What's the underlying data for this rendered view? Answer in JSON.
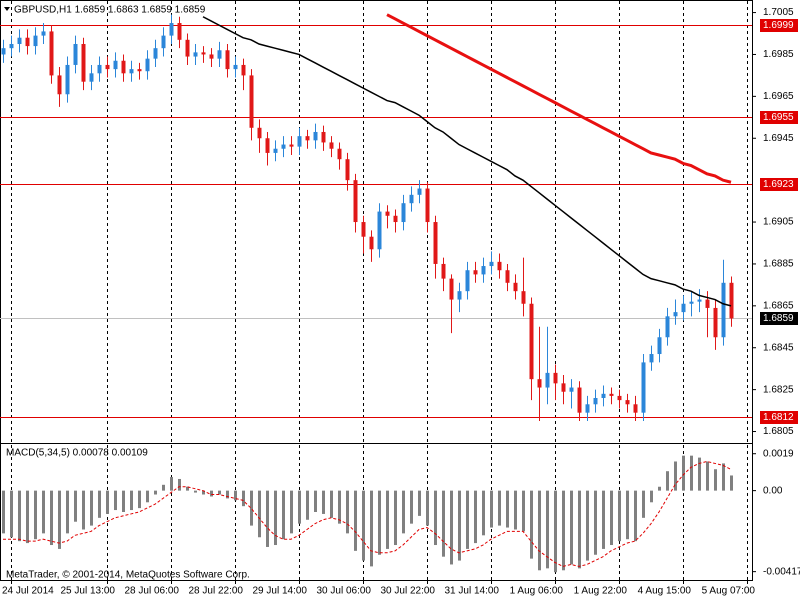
{
  "chart_data": [
    {
      "type": "candlestick",
      "title": "GBPUSD,H1  1.6859 1.6863 1.6859 1.6859",
      "categories": [
        null,
        "24 Jul 2014",
        null,
        null,
        null,
        null,
        null,
        null,
        null,
        null,
        null,
        null,
        null,
        "25 Jul 13:00",
        null,
        null,
        null,
        null,
        null,
        null,
        null,
        "28 Jul 06:00",
        null,
        null,
        null,
        null,
        null,
        null,
        null,
        "28 Jul 22:00",
        null,
        null,
        null,
        null,
        null,
        null,
        null,
        "29 Jul 14:00",
        null,
        null,
        null,
        null,
        null,
        null,
        null,
        "30 Jul 06:00",
        null,
        null,
        null,
        null,
        null,
        null,
        null,
        "30 Jul 22:00",
        null,
        null,
        null,
        null,
        null,
        null,
        null,
        "31 Jul 14:00",
        null,
        null,
        null,
        null,
        null,
        null,
        null,
        "1 Aug 06:00",
        null,
        null,
        null,
        null,
        null,
        null,
        null,
        "1 Aug 22:00",
        null,
        null,
        null,
        null,
        null,
        null,
        null,
        "4 Aug 15:00",
        null,
        null,
        null,
        null,
        null,
        null,
        null,
        "5 Aug 07:00"
      ],
      "open": [
        1.6985,
        1.6988,
        1.699,
        1.6993,
        1.6989,
        1.6994,
        1.6996,
        1.6975,
        1.6966,
        1.698,
        1.699,
        1.6972,
        1.6976,
        1.698,
        1.6978,
        1.6982,
        1.6976,
        1.6978,
        1.6977,
        1.6983,
        1.6988,
        1.6994,
        1.7,
        1.6992,
        1.6984,
        1.6986,
        1.6985,
        1.6983,
        1.6987,
        1.6978,
        1.698,
        1.6975,
        1.695,
        1.6945,
        1.6938,
        1.694,
        1.6942,
        1.6941,
        1.6946,
        1.6944,
        1.6948,
        1.6943,
        1.694,
        1.6935,
        1.6925,
        1.6905,
        1.6898,
        1.6892,
        1.691,
        1.6908,
        1.6905,
        1.6914,
        1.6918,
        1.6921,
        1.6905,
        1.6885,
        1.6878,
        1.6868,
        1.6872,
        1.6882,
        1.688,
        1.6884,
        1.6886,
        1.6882,
        1.6876,
        1.6872,
        1.6866,
        1.683,
        1.6826,
        1.6833,
        1.6828,
        1.6824,
        1.6826,
        1.6814,
        1.6818,
        1.6821,
        1.6823,
        1.6822,
        1.682,
        1.6818,
        1.6814,
        1.6838,
        1.6842,
        1.685,
        1.686,
        1.6862,
        1.6866,
        1.6867,
        1.6868,
        1.6864,
        1.685,
        1.6876,
        null,
        null
      ],
      "high": [
        1.6992,
        1.6994,
        1.6997,
        1.6997,
        1.6998,
        1.7,
        1.6999,
        1.6979,
        1.6984,
        1.6994,
        1.6993,
        1.698,
        1.6984,
        1.6984,
        1.6986,
        1.6985,
        1.6982,
        1.6981,
        1.6987,
        1.6992,
        1.6998,
        1.7004,
        1.7003,
        1.6995,
        1.699,
        1.6989,
        1.6988,
        1.6991,
        1.699,
        1.6984,
        1.6983,
        1.6978,
        1.6954,
        1.6948,
        1.6944,
        1.6946,
        1.6946,
        1.695,
        1.6949,
        1.6952,
        1.6951,
        1.6946,
        1.6943,
        1.6938,
        1.6928,
        1.6908,
        1.6901,
        1.6914,
        1.6913,
        1.6911,
        1.6918,
        1.6922,
        1.6925,
        1.6924,
        1.6908,
        1.6888,
        1.688,
        1.6876,
        1.6886,
        1.6886,
        1.6888,
        1.6891,
        1.689,
        1.6885,
        1.688,
        1.6888,
        1.6869,
        1.6855,
        1.6855,
        1.6837,
        1.6832,
        1.683,
        1.6829,
        1.6822,
        1.6825,
        1.6827,
        1.6826,
        1.6825,
        1.6823,
        1.6822,
        1.6842,
        1.6846,
        1.6854,
        1.6864,
        1.6868,
        1.687,
        1.6872,
        1.6873,
        1.6872,
        1.6868,
        1.6887,
        1.6879,
        null,
        null
      ],
      "low": [
        1.6981,
        1.6984,
        1.6986,
        1.6985,
        1.6985,
        1.699,
        1.6971,
        1.696,
        1.6962,
        1.6976,
        1.6968,
        1.6968,
        1.6972,
        1.6974,
        1.6974,
        1.6972,
        1.6972,
        1.6973,
        1.6973,
        1.6979,
        1.6984,
        1.699,
        1.6988,
        1.698,
        1.698,
        1.6981,
        1.6979,
        1.6979,
        1.6974,
        1.6974,
        1.6968,
        1.6944,
        1.6938,
        1.6932,
        1.6934,
        1.6936,
        1.6937,
        1.6937,
        1.694,
        1.694,
        1.6939,
        1.6936,
        1.693,
        1.692,
        1.69,
        1.689,
        1.6886,
        1.6888,
        1.6902,
        1.69,
        1.6901,
        1.691,
        1.6914,
        1.69,
        1.6878,
        1.6872,
        1.6852,
        1.6862,
        1.6868,
        1.6876,
        1.6876,
        1.688,
        1.6878,
        1.6872,
        1.6868,
        1.686,
        1.682,
        1.681,
        1.6818,
        1.682,
        1.6818,
        1.6816,
        1.681,
        1.681,
        1.6814,
        1.6817,
        1.6818,
        1.6816,
        1.6814,
        1.681,
        1.681,
        1.6834,
        1.6838,
        1.6846,
        1.6856,
        1.6858,
        1.686,
        1.6862,
        1.685,
        1.6844,
        1.6846,
        1.6855,
        null,
        null
      ],
      "close": [
        1.6988,
        1.699,
        1.6993,
        1.6989,
        1.6994,
        1.6996,
        1.6975,
        1.6966,
        1.698,
        1.699,
        1.6972,
        1.6976,
        1.698,
        1.6978,
        1.6982,
        1.6976,
        1.6978,
        1.6977,
        1.6983,
        1.6988,
        1.6994,
        1.7,
        1.6992,
        1.6984,
        1.6986,
        1.6985,
        1.6983,
        1.6987,
        1.6978,
        1.698,
        1.6975,
        1.695,
        1.6945,
        1.6938,
        1.694,
        1.6942,
        1.6941,
        1.6946,
        1.6944,
        1.6948,
        1.6943,
        1.694,
        1.6935,
        1.6925,
        1.6905,
        1.6898,
        1.6892,
        1.691,
        1.6908,
        1.6905,
        1.6914,
        1.6918,
        1.6921,
        1.6905,
        1.6885,
        1.6878,
        1.6868,
        1.6872,
        1.6882,
        1.688,
        1.6884,
        1.6886,
        1.6882,
        1.6876,
        1.6872,
        1.6866,
        1.683,
        1.6826,
        1.6833,
        1.6828,
        1.6824,
        1.6826,
        1.6814,
        1.6818,
        1.6821,
        1.6823,
        1.6822,
        1.682,
        1.6818,
        1.6814,
        1.6838,
        1.6842,
        1.685,
        1.686,
        1.6862,
        1.6866,
        1.6867,
        1.6868,
        1.6864,
        1.685,
        1.6876,
        1.6859,
        null,
        null
      ],
      "up_color": "#2b86d9",
      "down_color": "#e01818",
      "lines": [
        {
          "color": "#000000",
          "values": [
            null,
            null,
            null,
            null,
            null,
            null,
            null,
            null,
            null,
            null,
            null,
            null,
            null,
            null,
            null,
            null,
            null,
            null,
            null,
            null,
            null,
            null,
            null,
            null,
            null,
            1.7003,
            1.7001,
            1.6999,
            1.6997,
            1.6995,
            1.6993,
            1.6992,
            1.699,
            1.6989,
            1.6988,
            1.6987,
            1.6986,
            1.6985,
            1.6983,
            1.6981,
            1.6979,
            1.6977,
            1.6975,
            1.6973,
            1.6971,
            1.6969,
            1.6967,
            1.6965,
            1.6963,
            1.6962,
            1.696,
            1.6958,
            1.6956,
            1.6953,
            1.695,
            1.6948,
            1.6945,
            1.6942,
            1.694,
            1.6938,
            1.6936,
            1.6934,
            1.6932,
            1.693,
            1.6927,
            1.6925,
            1.6922,
            1.6919,
            1.6916,
            1.6913,
            1.691,
            1.6907,
            1.6904,
            1.6901,
            1.6898,
            1.6895,
            1.6892,
            1.6889,
            1.6886,
            1.6883,
            1.688,
            1.6878,
            1.6877,
            1.6876,
            1.6875,
            1.6873,
            1.6872,
            1.687,
            1.6869,
            1.6868,
            1.6866,
            1.6865,
            null,
            null
          ]
        },
        {
          "color": "#e81010",
          "values": [
            null,
            null,
            null,
            null,
            null,
            null,
            null,
            null,
            null,
            null,
            null,
            null,
            null,
            null,
            null,
            null,
            null,
            null,
            null,
            null,
            null,
            null,
            null,
            null,
            null,
            null,
            null,
            null,
            null,
            null,
            null,
            null,
            null,
            null,
            null,
            null,
            null,
            null,
            null,
            null,
            null,
            null,
            null,
            null,
            null,
            null,
            null,
            null,
            1.7004,
            1.7002,
            1.7,
            1.6998,
            1.6996,
            1.6994,
            1.6992,
            1.699,
            1.6988,
            1.6986,
            1.6984,
            1.6982,
            1.698,
            1.6978,
            1.6976,
            1.6974,
            1.6972,
            1.697,
            1.6968,
            1.6966,
            1.6964,
            1.6962,
            1.696,
            1.6958,
            1.6956,
            1.6954,
            1.6952,
            1.695,
            1.6948,
            1.6946,
            1.6944,
            1.6942,
            1.694,
            1.6938,
            1.6937,
            1.6936,
            1.6935,
            1.6933,
            1.6932,
            1.693,
            1.6928,
            1.6927,
            1.6925,
            1.6924,
            null,
            null
          ]
        }
      ],
      "levels": [
        1.6999,
        1.6955,
        1.6923,
        1.6812
      ],
      "level_color": "#e00000",
      "last_price": 1.6859,
      "ylim": [
        1.68,
        1.7011
      ],
      "yticks": [
        1.7005,
        1.6985,
        1.6965,
        1.6945,
        1.6905,
        1.6885,
        1.6865,
        1.6845,
        1.6825,
        1.6805
      ],
      "grid": true
    },
    {
      "type": "macd",
      "title": "MACD(5,34,5) 0.00078 0.00109",
      "footer": "MetaTrader, © 2001-2014, MetaQuotes Software Corp.",
      "histogram": {
        "color": "#808080",
        "values": [
          -0.0022,
          -0.0024,
          -0.0026,
          -0.0027,
          -0.0025,
          -0.0022,
          -0.0028,
          -0.003,
          -0.0022,
          -0.0016,
          -0.002,
          -0.0018,
          -0.0014,
          -0.0012,
          -0.001,
          -0.0011,
          -0.001,
          -0.0009,
          -0.0006,
          -0.0002,
          0.0003,
          0.0007,
          0.0006,
          0.0002,
          -0.0001,
          -0.0002,
          -0.0003,
          -0.0002,
          -0.0004,
          -0.0005,
          -0.0008,
          -0.0018,
          -0.0024,
          -0.0029,
          -0.0028,
          -0.0025,
          -0.0022,
          -0.0017,
          -0.0015,
          -0.0011,
          -0.0012,
          -0.0014,
          -0.0017,
          -0.0022,
          -0.0031,
          -0.0036,
          -0.0039,
          -0.0033,
          -0.003,
          -0.0028,
          -0.0022,
          -0.0017,
          -0.0013,
          -0.0018,
          -0.0028,
          -0.0034,
          -0.0038,
          -0.0036,
          -0.003,
          -0.0027,
          -0.0023,
          -0.0019,
          -0.0018,
          -0.0019,
          -0.002,
          -0.0021,
          -0.0035,
          -0.0041,
          -0.004,
          -0.0042,
          -0.0041,
          -0.0038,
          -0.004,
          -0.0036,
          -0.0033,
          -0.003,
          -0.0028,
          -0.0026,
          -0.0025,
          -0.0026,
          -0.0014,
          -0.0006,
          0.0002,
          0.001,
          0.0015,
          0.0018,
          0.0018,
          0.0017,
          0.0015,
          0.0011,
          0.0014,
          0.00078,
          null,
          null
        ]
      },
      "signal": {
        "color": "#e00000",
        "values": [
          -0.0025,
          -0.0025,
          -0.0025,
          -0.0026,
          -0.0026,
          -0.0025,
          -0.0026,
          -0.0027,
          -0.0026,
          -0.0023,
          -0.0022,
          -0.0021,
          -0.0018,
          -0.0016,
          -0.0014,
          -0.0013,
          -0.0012,
          -0.0011,
          -0.0009,
          -0.0007,
          -0.0004,
          -0.0001,
          0.0002,
          0.0002,
          0.0001,
          0,
          -0.0002,
          -0.0002,
          -0.0003,
          -0.0004,
          -0.0005,
          -0.0009,
          -0.0014,
          -0.0019,
          -0.0023,
          -0.0025,
          -0.0025,
          -0.0023,
          -0.002,
          -0.0017,
          -0.0015,
          -0.0014,
          -0.0015,
          -0.0017,
          -0.0021,
          -0.0026,
          -0.0031,
          -0.0032,
          -0.0032,
          -0.0031,
          -0.0028,
          -0.0024,
          -0.002,
          -0.0019,
          -0.0022,
          -0.0026,
          -0.003,
          -0.0032,
          -0.0031,
          -0.003,
          -0.0028,
          -0.0025,
          -0.0023,
          -0.0021,
          -0.0021,
          -0.0021,
          -0.0026,
          -0.0031,
          -0.0034,
          -0.0037,
          -0.0039,
          -0.0038,
          -0.0039,
          -0.0038,
          -0.0036,
          -0.0034,
          -0.0031,
          -0.0029,
          -0.0027,
          -0.0026,
          -0.0022,
          -0.0017,
          -0.0011,
          -0.0004,
          0.0003,
          0.0008,
          0.0012,
          0.0014,
          0.0015,
          0.0014,
          0.0013,
          0.00109,
          null,
          null
        ]
      },
      "ylim": [
        -0.0046,
        0.0024
      ],
      "yticks": [
        0.0019,
        {
          "value": 0,
          "label": "0.00"
        },
        -0.00417
      ]
    }
  ]
}
